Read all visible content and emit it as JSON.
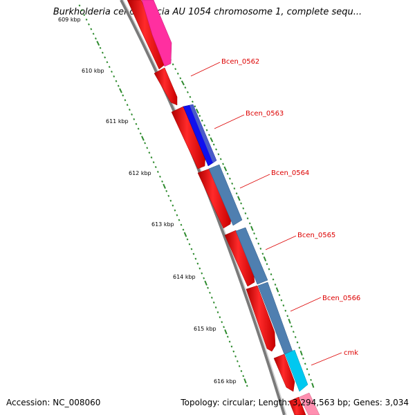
{
  "title": "Burkholderia cenocepacia AU 1054 chromosome 1, complete sequ...",
  "accession": "Accession: NC_008060",
  "topology": "Topology: circular; Length: 3,294,563 bp; Genes: 3,034",
  "ruler": {
    "unit": "kbp",
    "labels": [
      "609 kbp",
      "610 kbp",
      "611 kbp",
      "612 kbp",
      "613 kbp",
      "614 kbp",
      "615 kbp",
      "616 kbp"
    ],
    "tick_color": "#2e8b2e"
  },
  "gene_labels": [
    "Bcen_0562",
    "Bcen_0563",
    "Bcen_0564",
    "Bcen_0565",
    "Bcen_0566",
    "cmk"
  ],
  "colors": {
    "gene_red": "#ff0000",
    "gene_magenta": "#ff2fa0",
    "gene_blue": "#0000ff",
    "gene_steelblue": "#4f7fb0",
    "gene_cyan": "#00c8f0",
    "backbone": "#808080",
    "label_red": "#dd0000",
    "tick_green": "#2e8b2e"
  }
}
